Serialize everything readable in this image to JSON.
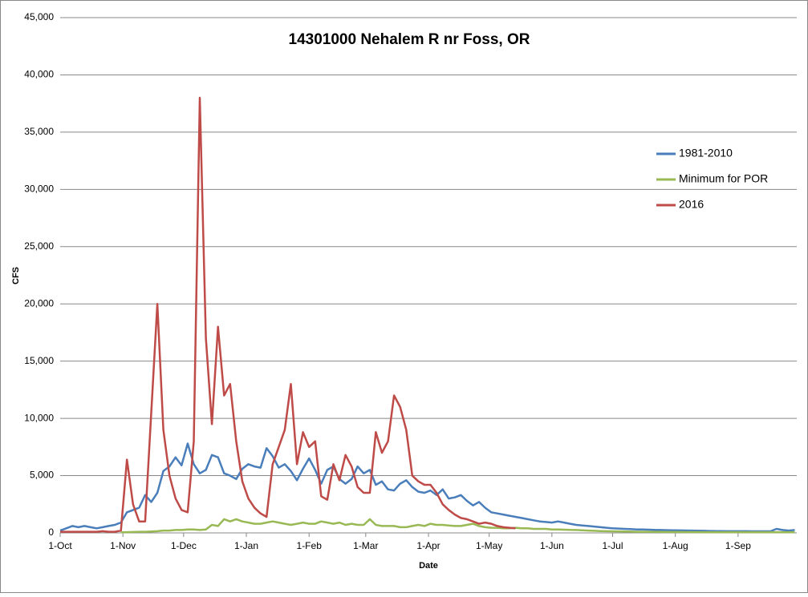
{
  "chart_data": {
    "type": "line",
    "title": "14301000  Nehalem R nr  Foss, OR",
    "x_label": "Date",
    "y_label": "CFS",
    "x": [
      0,
      3,
      6,
      9,
      12,
      15,
      18,
      21,
      24,
      27,
      30,
      33,
      36,
      39,
      42,
      45,
      48,
      51,
      54,
      57,
      60,
      63,
      66,
      69,
      72,
      75,
      78,
      81,
      84,
      87,
      90,
      93,
      96,
      99,
      102,
      105,
      108,
      111,
      114,
      117,
      120,
      123,
      126,
      129,
      132,
      135,
      138,
      141,
      144,
      147,
      150,
      153,
      156,
      159,
      162,
      165,
      168,
      171,
      174,
      177,
      180,
      183,
      186,
      189,
      192,
      195,
      198,
      201,
      204,
      207,
      210,
      213,
      216,
      219,
      222,
      225,
      228,
      231,
      234,
      237,
      240,
      243,
      246,
      249,
      252,
      255,
      258,
      261,
      264,
      267,
      270,
      273,
      276,
      279,
      282,
      285,
      288,
      291,
      294,
      297,
      300,
      303,
      306,
      309,
      312,
      315,
      318,
      321,
      324,
      327,
      330,
      333,
      336,
      339,
      342,
      345,
      348,
      351,
      354,
      357,
      360,
      363
    ],
    "xlim": [
      0,
      364
    ],
    "xticks": [
      {
        "value": 0,
        "label": "1-Oct"
      },
      {
        "value": 31,
        "label": "1-Nov"
      },
      {
        "value": 61,
        "label": "1-Dec"
      },
      {
        "value": 92,
        "label": "1-Jan"
      },
      {
        "value": 123,
        "label": "1-Feb"
      },
      {
        "value": 151,
        "label": "1-Mar"
      },
      {
        "value": 182,
        "label": "1-Apr"
      },
      {
        "value": 212,
        "label": "1-May"
      },
      {
        "value": 243,
        "label": "1-Jun"
      },
      {
        "value": 273,
        "label": "1-Jul"
      },
      {
        "value": 304,
        "label": "1-Aug"
      },
      {
        "value": 335,
        "label": "1-Sep"
      }
    ],
    "ylim": [
      0,
      45000
    ],
    "yticks": [
      0,
      {
        "value": 5000,
        "label": "5,000"
      },
      {
        "value": 10000,
        "label": "10,000"
      },
      {
        "value": 15000,
        "label": "15,000"
      },
      {
        "value": 20000,
        "label": "20,000"
      },
      {
        "value": 25000,
        "label": "25,000"
      },
      {
        "value": 30000,
        "label": "30,000"
      },
      {
        "value": 35000,
        "label": "35,000"
      },
      {
        "value": 40000,
        "label": "40,000"
      },
      {
        "value": 45000,
        "label": "45,000"
      }
    ],
    "grid": true,
    "legend": "right",
    "series": [
      {
        "name": "1981-2010",
        "color": "#4a7ebb",
        "values": [
          200,
          400,
          600,
          500,
          600,
          500,
          400,
          500,
          600,
          700,
          900,
          1800,
          2000,
          2200,
          3300,
          2700,
          3500,
          5400,
          5800,
          6600,
          5900,
          7800,
          6000,
          5200,
          5500,
          6800,
          6600,
          5200,
          5000,
          4700,
          5600,
          6000,
          5800,
          5700,
          7400,
          6700,
          5700,
          6000,
          5400,
          4600,
          5600,
          6500,
          5500,
          4300,
          5500,
          5800,
          4700,
          4300,
          4700,
          5800,
          5200,
          5500,
          4200,
          4500,
          3800,
          3700,
          4300,
          4600,
          4000,
          3600,
          3500,
          3700,
          3300,
          3800,
          3000,
          3100,
          3300,
          2800,
          2400,
          2700,
          2200,
          1800,
          1700,
          1600,
          1500,
          1400,
          1300,
          1200,
          1100,
          1000,
          950,
          900,
          1000,
          900,
          800,
          700,
          650,
          600,
          550,
          500,
          450,
          400,
          380,
          350,
          330,
          300,
          300,
          280,
          260,
          250,
          240,
          230,
          220,
          210,
          200,
          190,
          180,
          170,
          160,
          160,
          150,
          150,
          150,
          150,
          140,
          140,
          140,
          140,
          350,
          250,
          200,
          250
        ]
      },
      {
        "name": "Minimum for POR",
        "color": "#98b954",
        "values": [
          null,
          null,
          null,
          null,
          null,
          null,
          null,
          null,
          null,
          null,
          50,
          60,
          80,
          100,
          100,
          120,
          150,
          200,
          200,
          250,
          250,
          300,
          300,
          250,
          300,
          700,
          600,
          1200,
          1000,
          1200,
          1000,
          900,
          800,
          800,
          900,
          1000,
          900,
          800,
          700,
          800,
          900,
          800,
          800,
          1000,
          900,
          800,
          900,
          700,
          800,
          700,
          700,
          1200,
          700,
          600,
          600,
          600,
          500,
          500,
          600,
          700,
          600,
          800,
          700,
          700,
          650,
          600,
          600,
          700,
          800,
          600,
          500,
          450,
          450,
          400,
          400,
          450,
          400,
          400,
          350,
          350,
          350,
          300,
          300,
          280,
          260,
          250,
          230,
          200,
          180,
          160,
          150,
          140,
          130,
          120,
          110,
          100,
          100,
          100,
          90,
          90,
          80,
          80,
          80,
          70,
          70,
          70,
          60,
          60,
          60,
          60,
          60,
          60,
          60,
          60,
          60,
          60,
          60,
          60,
          60,
          60,
          60,
          60
        ]
      },
      {
        "name": "2016",
        "color": "#be4b48",
        "values": [
          100,
          100,
          100,
          100,
          100,
          100,
          100,
          150,
          100,
          100,
          200,
          6400,
          2500,
          1000,
          1000,
          10500,
          20000,
          9000,
          5000,
          3000,
          2000,
          1800,
          8000,
          38000,
          17000,
          9500,
          18000,
          12000,
          13000,
          8000,
          4500,
          3000,
          2200,
          1700,
          1400,
          6000,
          7500,
          9000,
          13000,
          6000,
          8800,
          7500,
          8000,
          3200,
          2900,
          6000,
          4600,
          6800,
          5800,
          4000,
          3500,
          3500,
          8800,
          7000,
          8000,
          12000,
          11000,
          9000,
          5000,
          4500,
          4200,
          4200,
          3500,
          2500,
          2000,
          1600,
          1300,
          1200,
          1000,
          800,
          900,
          800,
          600,
          500,
          450,
          400,
          null,
          null,
          null,
          null,
          null,
          null,
          null,
          null,
          null,
          null,
          null,
          null,
          null,
          null,
          null,
          null,
          null,
          null,
          null,
          null,
          null,
          null,
          null,
          null,
          null,
          null,
          null,
          null,
          null,
          null,
          null,
          null,
          null,
          null,
          null,
          null,
          null,
          null,
          null,
          null,
          null,
          null,
          null,
          null,
          null,
          null
        ]
      }
    ]
  }
}
